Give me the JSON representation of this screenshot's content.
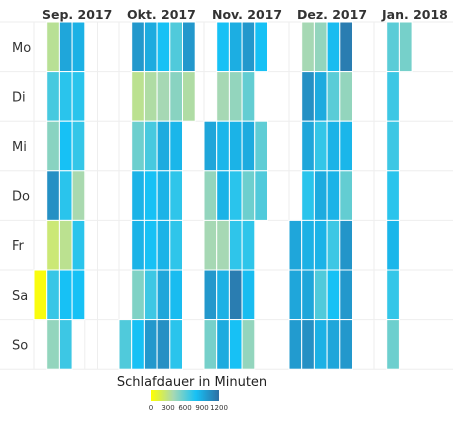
{
  "chart_data": {
    "type": "heatmap",
    "title": "",
    "legend": {
      "title": "Schlafdauer in Minuten",
      "ticks": [
        "0",
        "300",
        "600",
        "900",
        "1200"
      ],
      "range": [
        0,
        1200
      ],
      "colors": [
        "#ffff00",
        "#a6d8b4",
        "#17c1f5",
        "#2e6fa3"
      ]
    },
    "months": [
      "Sep. 2017",
      "Okt. 2017",
      "Nov. 2017",
      "Dez. 2017",
      "Jan. 2018"
    ],
    "weekdays": [
      "Mo",
      "Di",
      "Mi",
      "Do",
      "Fr",
      "Sa",
      "So"
    ],
    "weeks": [
      {
        "month": 0,
        "values": [
          null,
          null,
          null,
          null,
          null,
          40,
          null
        ]
      },
      {
        "month": 0,
        "values": [
          480,
          800,
          660,
          1080,
          360,
          830,
          640
        ]
      },
      {
        "month": 0,
        "values": [
          1000,
          860,
          900,
          860,
          460,
          900,
          820
        ]
      },
      {
        "month": 0,
        "values": [
          960,
          860,
          840,
          580,
          860,
          900,
          null
        ]
      },
      {
        "month": 0,
        "values": [
          null,
          null,
          null,
          null,
          null,
          null,
          null
        ]
      },
      {
        "month": 0,
        "values": [
          null,
          null,
          null,
          null,
          null,
          null,
          null
        ]
      },
      {
        "month": 1,
        "values": [
          null,
          null,
          null,
          null,
          null,
          null,
          780
        ]
      },
      {
        "month": 1,
        "values": [
          1050,
          460,
          720,
          950,
          950,
          680,
          900
        ]
      },
      {
        "month": 1,
        "values": [
          980,
          540,
          800,
          900,
          900,
          820,
          1050
        ]
      },
      {
        "month": 1,
        "values": [
          900,
          600,
          980,
          950,
          950,
          1000,
          1080
        ]
      },
      {
        "month": 1,
        "values": [
          780,
          660,
          940,
          850,
          850,
          920,
          860
        ]
      },
      {
        "month": 1,
        "values": [
          1050,
          540,
          null,
          null,
          null,
          null,
          null
        ]
      },
      {
        "month": 2,
        "values": [
          null,
          null,
          1000,
          640,
          600,
          1050,
          700
        ]
      },
      {
        "month": 2,
        "values": [
          900,
          600,
          940,
          950,
          600,
          960,
          980
        ]
      },
      {
        "month": 2,
        "values": [
          970,
          640,
          950,
          860,
          850,
          1150,
          900
        ]
      },
      {
        "month": 2,
        "values": [
          1050,
          740,
          980,
          720,
          850,
          920,
          640
        ]
      },
      {
        "month": 2,
        "values": [
          900,
          null,
          750,
          780,
          null,
          null,
          null
        ]
      },
      {
        "month": 3,
        "values": [
          null,
          null,
          null,
          null,
          1000,
          1000,
          1040
        ]
      },
      {
        "month": 3,
        "values": [
          600,
          1080,
          1000,
          860,
          960,
          1000,
          1080
        ]
      },
      {
        "month": 3,
        "values": [
          640,
          980,
          840,
          980,
          950,
          780,
          960
        ]
      },
      {
        "month": 3,
        "values": [
          920,
          760,
          950,
          950,
          820,
          900,
          1000
        ]
      },
      {
        "month": 3,
        "values": [
          1150,
          640,
          940,
          740,
          1060,
          1050,
          1050
        ]
      },
      {
        "month": 4,
        "values": [
          null,
          null,
          null,
          null,
          null,
          null,
          null
        ]
      },
      {
        "month": 4,
        "values": [
          760,
          820,
          820,
          860,
          940,
          840,
          720
        ]
      },
      {
        "month": 4,
        "values": [
          700,
          null,
          null,
          null,
          null,
          null,
          null
        ]
      }
    ]
  }
}
